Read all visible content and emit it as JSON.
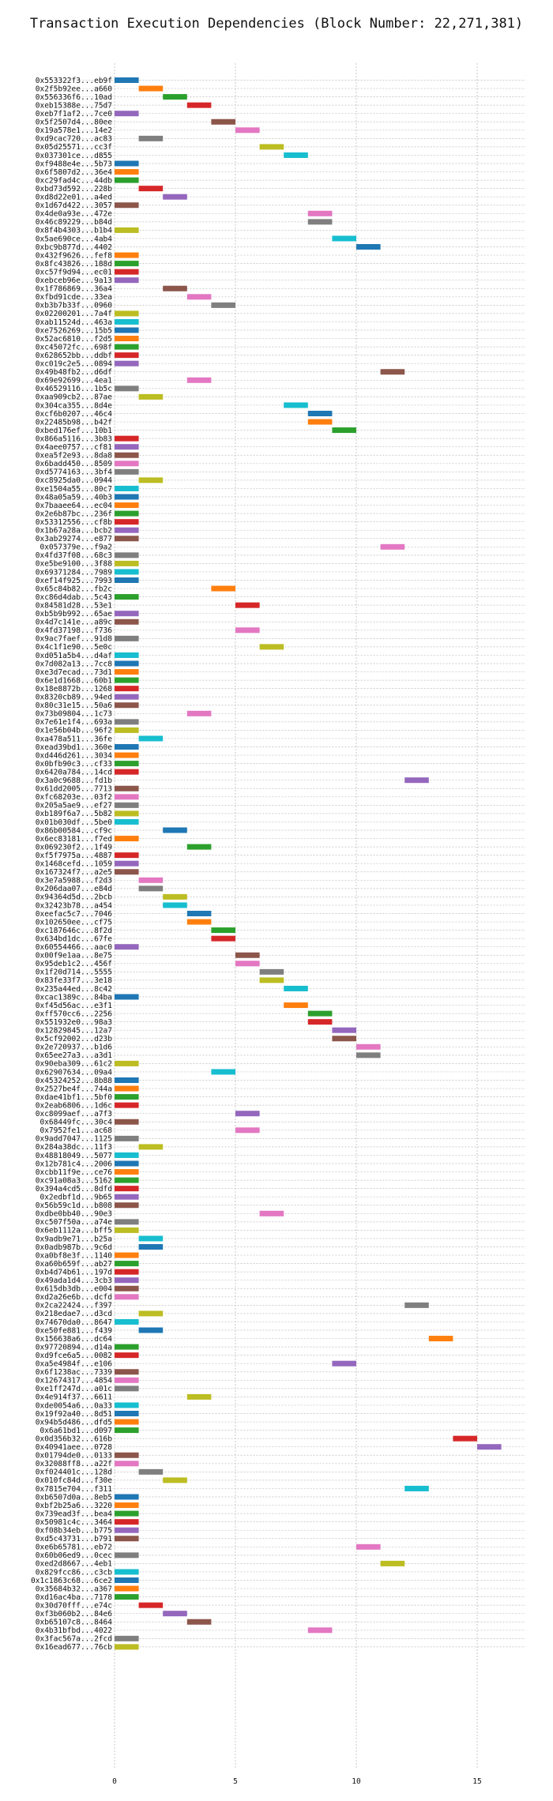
{
  "chart_data": {
    "type": "bar",
    "title": "Transaction Execution Dependencies (Block Number: 22,271,381)",
    "xlabel": "",
    "ylabel": "",
    "xlim": [
      -2.5,
      17
    ],
    "x_ticks": [
      0,
      5,
      10,
      15
    ],
    "x_tick_labels": [
      "0",
      "5",
      "10",
      "15"
    ],
    "grid": true,
    "palette": [
      "#1f77b4",
      "#ff7f0e",
      "#2ca02c",
      "#d62728",
      "#9467bd",
      "#8c564b",
      "#e377c2",
      "#7f7f7f",
      "#bcbd22",
      "#17becf"
    ],
    "transactions": [
      {
        "label": "0x553322f3...eb9f",
        "start": 0
      },
      {
        "label": "0x2f5b92ee...a660",
        "start": 1
      },
      {
        "label": "0x556336f6...10ad",
        "start": 2
      },
      {
        "label": "0xeb15388e...75d7",
        "start": 3
      },
      {
        "label": "0xeb7f1af2...7ce0",
        "start": 0
      },
      {
        "label": "0x5f2507d4...80ee",
        "start": 4
      },
      {
        "label": "0x19a578e1...14e2",
        "start": 5
      },
      {
        "label": "0xd9cac720...ac83",
        "start": 1
      },
      {
        "label": "0x05d25571...cc3f",
        "start": 6
      },
      {
        "label": "0x037301ce...d855",
        "start": 7
      },
      {
        "label": "0xf9488e4e...5b73",
        "start": 0
      },
      {
        "label": "0x6f5807d2...36e4",
        "start": 0
      },
      {
        "label": "0xc29fad4c...44db",
        "start": 0
      },
      {
        "label": "0xbd73d592...228b",
        "start": 1
      },
      {
        "label": "0xd8d22e01...a4ed",
        "start": 2
      },
      {
        "label": "0x1d67d422...3057",
        "start": 0
      },
      {
        "label": "0x4de0a93e...472e",
        "start": 8
      },
      {
        "label": "0x46c89229...b84d",
        "start": 8
      },
      {
        "label": "0x8f4b4303...b1b4",
        "start": 0
      },
      {
        "label": "0x5ae690ce...4ab4",
        "start": 9
      },
      {
        "label": "0xbc9b877d...4402",
        "start": 10
      },
      {
        "label": "0x432f9626...fef8",
        "start": 0
      },
      {
        "label": "0x8fc43826...188d",
        "start": 0
      },
      {
        "label": "0xc57f9d94...ec01",
        "start": 0
      },
      {
        "label": "0xebceb96e...9a13",
        "start": 0
      },
      {
        "label": "0x1f786869...36a4",
        "start": 2
      },
      {
        "label": "0xfbd91cde...33ea",
        "start": 3
      },
      {
        "label": "0xb3b7b33f...0960",
        "start": 4
      },
      {
        "label": "0x02200201...7a4f",
        "start": 0
      },
      {
        "label": "0xab11524d...463a",
        "start": 0
      },
      {
        "label": "0xe7526269...15b5",
        "start": 0
      },
      {
        "label": "0x52ac6810...f2d5",
        "start": 0
      },
      {
        "label": "0xc45072fc...698f",
        "start": 0
      },
      {
        "label": "0x628652bb...ddbf",
        "start": 0
      },
      {
        "label": "0xc019c2e5...0894",
        "start": 0
      },
      {
        "label": "0x49b48fb2...d6df",
        "start": 11
      },
      {
        "label": "0x69e92699...4ea1",
        "start": 3
      },
      {
        "label": "0x4652911б...1b5c",
        "start": 0
      },
      {
        "label": "0xaa909cb2...87ae",
        "start": 1
      },
      {
        "label": "0x304ca355...8d4e",
        "start": 7
      },
      {
        "label": "0xcf6b0207...46c4",
        "start": 8
      },
      {
        "label": "0x22485b98...b42f",
        "start": 8
      },
      {
        "label": "0xbed176ef...10b1",
        "start": 9
      },
      {
        "label": "0x866a5116...3b83",
        "start": 0
      },
      {
        "label": "0x4aee0757...cf81",
        "start": 0
      },
      {
        "label": "0xea5f2e93...8da8",
        "start": 0
      },
      {
        "label": "0x6badd450...8509",
        "start": 0
      },
      {
        "label": "0xd5774163...3bf4",
        "start": 0
      },
      {
        "label": "0xc8925da0...0944",
        "start": 1
      },
      {
        "label": "0xe1504a55...80c7",
        "start": 0
      },
      {
        "label": "0x48a05a59...40b3",
        "start": 0
      },
      {
        "label": "0x7baaee64...ec04",
        "start": 0
      },
      {
        "label": "0x2e6b87bc...236f",
        "start": 0
      },
      {
        "label": "0x53312556...cf8b",
        "start": 0
      },
      {
        "label": "0x1b67a28a...bcb2",
        "start": 0
      },
      {
        "label": "0x3ab29274...e877",
        "start": 0
      },
      {
        "label": "0x057379e...f9a2",
        "start": 11
      },
      {
        "label": "0x4fd37f08...68c3",
        "start": 0
      },
      {
        "label": "0xe5be9100...3f88",
        "start": 0
      },
      {
        "label": "0x69371284...7989",
        "start": 0
      },
      {
        "label": "0xef14f925...7993",
        "start": 0
      },
      {
        "label": "0x65c84b82...fb2c",
        "start": 4
      },
      {
        "label": "0xc86d4dab...5c43",
        "start": 0
      },
      {
        "label": "0x84581d28...53e1",
        "start": 5
      },
      {
        "label": "0xb5b9b992...65ae",
        "start": 0
      },
      {
        "label": "0x4d7c141e...a89c",
        "start": 0
      },
      {
        "label": "0x4fd37198...f736",
        "start": 5
      },
      {
        "label": "0x9ac7faef...91d8",
        "start": 0
      },
      {
        "label": "0x4c1f1e90...5e0c",
        "start": 6
      },
      {
        "label": "0xd051a5b4...d4af",
        "start": 0
      },
      {
        "label": "0x7d082a13...7cc8",
        "start": 0
      },
      {
        "label": "0xe3d7ecad...73d1",
        "start": 0
      },
      {
        "label": "0x6e1d1668...60b1",
        "start": 0
      },
      {
        "label": "0x18e8872b...1268",
        "start": 0
      },
      {
        "label": "0x8320cb89...94ed",
        "start": 0
      },
      {
        "label": "0x80c31e15...50a6",
        "start": 0
      },
      {
        "label": "0x73b09804...1c73",
        "start": 3
      },
      {
        "label": "0x7e61e1f4...693a",
        "start": 0
      },
      {
        "label": "0x1e56b04b...96f2",
        "start": 0
      },
      {
        "label": "0xa478a511...36fe",
        "start": 1
      },
      {
        "label": "0xead39bd1...360e",
        "start": 0
      },
      {
        "label": "0xd446d261...3034",
        "start": 0
      },
      {
        "label": "0x0bfb90c3...cf33",
        "start": 0
      },
      {
        "label": "0x6420a784...14cd",
        "start": 0
      },
      {
        "label": "0x3a0c9688...fd1b",
        "start": 12
      },
      {
        "label": "0x61dd2005...7713",
        "start": 0
      },
      {
        "label": "0xfc68203e...03f2",
        "start": 0
      },
      {
        "label": "0x205a5ae9...ef27",
        "start": 0
      },
      {
        "label": "0xb189f6a7...5b82",
        "start": 0
      },
      {
        "label": "0x01b030df...5be0",
        "start": 0
      },
      {
        "label": "0x86b00584...cf9c",
        "start": 2
      },
      {
        "label": "0x6ec83181...f7ed",
        "start": 0
      },
      {
        "label": "0x069230f2...1f49",
        "start": 3
      },
      {
        "label": "0xf5f7975a...4887",
        "start": 0
      },
      {
        "label": "0x1468cefd...1059",
        "start": 0
      },
      {
        "label": "0x167324f7...a2e5",
        "start": 0
      },
      {
        "label": "0x3e7a5988...f2d3",
        "start": 1
      },
      {
        "label": "0x206daa07...e84d",
        "start": 1
      },
      {
        "label": "0x94364d5d...2bcb",
        "start": 2
      },
      {
        "label": "0x32423b78...a454",
        "start": 2
      },
      {
        "label": "0xeefac5c7...7046",
        "start": 3
      },
      {
        "label": "0x102650ee...cf75",
        "start": 3
      },
      {
        "label": "0xc187646c...8f2d",
        "start": 4
      },
      {
        "label": "0x634bd1dc...67fe",
        "start": 4
      },
      {
        "label": "0x60554466...aac0",
        "start": 0
      },
      {
        "label": "0x00f9e1aa...8e75",
        "start": 5
      },
      {
        "label": "0x95deb1c2...456f",
        "start": 5
      },
      {
        "label": "0x1f20d714...5555",
        "start": 6
      },
      {
        "label": "0x83fe33f7...3e18",
        "start": 6
      },
      {
        "label": "0x235a44ed...8c42",
        "start": 7
      },
      {
        "label": "0xcac1389c...84ba",
        "start": 0
      },
      {
        "label": "0xf45d56ac...e3f1",
        "start": 7
      },
      {
        "label": "0xff570cc6...2256",
        "start": 8
      },
      {
        "label": "0x551932e0...98a3",
        "start": 8
      },
      {
        "label": "0x12829845...12a7",
        "start": 9
      },
      {
        "label": "0x5cf92002...d23b",
        "start": 9
      },
      {
        "label": "0x2e720937...b1d6",
        "start": 10
      },
      {
        "label": "0x65ee27a3...a3d1",
        "start": 10
      },
      {
        "label": "0x90eba309...61c2",
        "start": 0
      },
      {
        "label": "0x62907634...09a4",
        "start": 4
      },
      {
        "label": "0x45324252...8b88",
        "start": 0
      },
      {
        "label": "0x2527be4f...744a",
        "start": 0
      },
      {
        "label": "0xdae41bf1...5bf0",
        "start": 0
      },
      {
        "label": "0x2eab6806...1d6c",
        "start": 0
      },
      {
        "label": "0xc8099aef...a7f3",
        "start": 5
      },
      {
        "label": "0x68449fc...30c4",
        "start": 0
      },
      {
        "label": "0x7952fe1...ac68",
        "start": 5
      },
      {
        "label": "0x9add7047...1125",
        "start": 0
      },
      {
        "label": "0x284a38dc...11f3",
        "start": 1
      },
      {
        "label": "0x48818049...5077",
        "start": 0
      },
      {
        "label": "0x12b781c4...2006",
        "start": 0
      },
      {
        "label": "0xcbb11f9e...ce76",
        "start": 0
      },
      {
        "label": "0xc91a08a3...5162",
        "start": 0
      },
      {
        "label": "0x394a4cd5...8dfd",
        "start": 0
      },
      {
        "label": "0x2edbf1d...9b65",
        "start": 0
      },
      {
        "label": "0x56b59c1d...b808",
        "start": 0
      },
      {
        "label": "0xdbe0bb40...90e3",
        "start": 6
      },
      {
        "label": "0xc507f50a...a74e",
        "start": 0
      },
      {
        "label": "0x6eb1112a...bff5",
        "start": 0
      },
      {
        "label": "0x9adb9e71...b25a",
        "start": 1
      },
      {
        "label": "0x0adb987b...9c6d",
        "start": 1
      },
      {
        "label": "0xa0bf8e3f...1140",
        "start": 0
      },
      {
        "label": "0xa60b659f...ab27",
        "start": 0
      },
      {
        "label": "0xb4d74b61...197d",
        "start": 0
      },
      {
        "label": "0x49ada1d4...3cb3",
        "start": 0
      },
      {
        "label": "0x615db3db...e004",
        "start": 0
      },
      {
        "label": "0xd2a26e6b...dcfd",
        "start": 0
      },
      {
        "label": "0x2ca22424...f397",
        "start": 12
      },
      {
        "label": "0x218edae7...d3cd",
        "start": 1
      },
      {
        "label": "0x74670da0...8647",
        "start": 0
      },
      {
        "label": "0xe50fe881...f439",
        "start": 1
      },
      {
        "label": "0x156638a6...dc64",
        "start": 13
      },
      {
        "label": "0x97720894...d14a",
        "start": 0
      },
      {
        "label": "0xd9fce6a5...0082",
        "start": 0
      },
      {
        "label": "0xa5e4984f...e106",
        "start": 9
      },
      {
        "label": "0x6f1238ac...7339",
        "start": 0
      },
      {
        "label": "0x12674317...4854",
        "start": 0
      },
      {
        "label": "0xe1ff247d...a01c",
        "start": 0
      },
      {
        "label": "0x4e914f37...6611",
        "start": 3
      },
      {
        "label": "0xde0054a6...0a33",
        "start": 0
      },
      {
        "label": "0x19f92a40...8d51",
        "start": 0
      },
      {
        "label": "0x94b5d486...dfd5",
        "start": 0
      },
      {
        "label": "0x6a61bd1...d097",
        "start": 0
      },
      {
        "label": "0x0d356b32...616b",
        "start": 14
      },
      {
        "label": "0x40941aee...0728",
        "start": 15
      },
      {
        "label": "0x01794de0...0133",
        "start": 0
      },
      {
        "label": "0x32088ff8...a22f",
        "start": 0
      },
      {
        "label": "0xf024401c...128d",
        "start": 1
      },
      {
        "label": "0x010fc84d...f30e",
        "start": 2
      },
      {
        "label": "0x7815e704...f311",
        "start": 12
      },
      {
        "label": "0xb6507d0a...8eb5",
        "start": 0
      },
      {
        "label": "0xbf2b25a6...3220",
        "start": 0
      },
      {
        "label": "0x739ead3f...bea4",
        "start": 0
      },
      {
        "label": "0x50981c4c...3464",
        "start": 0
      },
      {
        "label": "0xf08b34eb...b775",
        "start": 0
      },
      {
        "label": "0xd5c43731...b791",
        "start": 0
      },
      {
        "label": "0xe6b65781...eb72",
        "start": 10
      },
      {
        "label": "0x60b06ed9...0cec",
        "start": 0
      },
      {
        "label": "0xed2d8667...4eb1",
        "start": 11
      },
      {
        "label": "0x829fcc86...c3cb",
        "start": 0
      },
      {
        "label": "0x1c1863c68...6ce2",
        "start": 0
      },
      {
        "label": "0x35684b32...a367",
        "start": 0
      },
      {
        "label": "0xd16ac4ba...7178",
        "start": 0
      },
      {
        "label": "0x30d70fff...e74c",
        "start": 1
      },
      {
        "label": "0xf3b060b2...84e6",
        "start": 2
      },
      {
        "label": "0xb65107c8...8464",
        "start": 3
      },
      {
        "label": "0x4b31bfbd...4022",
        "start": 8
      },
      {
        "label": "0x3fac567a...2fcd",
        "start": 0
      },
      {
        "label": "0x16ead677...76cb",
        "start": 0
      }
    ]
  }
}
